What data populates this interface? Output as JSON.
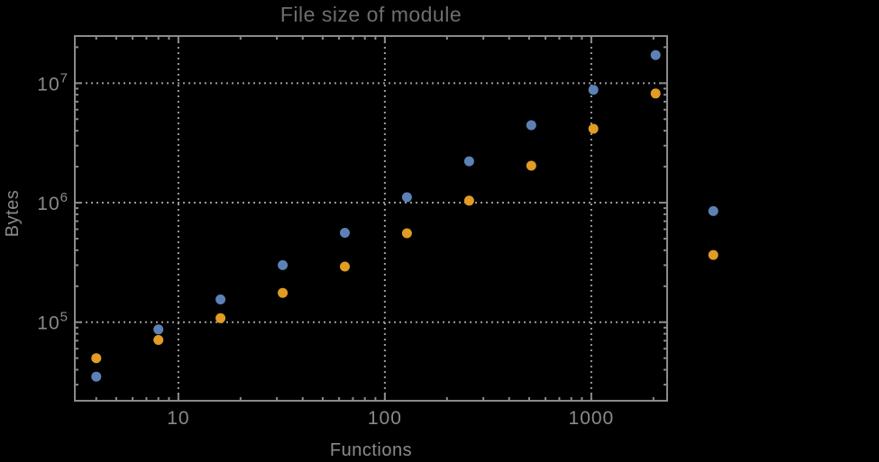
{
  "title": "File size of module",
  "colors": {
    "background": "#000000",
    "frame": "#8a8a8a",
    "grid": "#9a9a9a",
    "tick_text": "#8a8a8a",
    "title_text": "#6e6e6e",
    "series1": "#5e81b5",
    "series2": "#e19c24"
  },
  "chart_data": {
    "type": "scatter",
    "title": "File size of module",
    "xlabel": "Functions",
    "ylabel": "Bytes",
    "x_scale": "log",
    "y_scale": "log",
    "xlim": [
      3.15,
      2330
    ],
    "ylim": [
      22000,
      24800000
    ],
    "grid": {
      "style": "dotted",
      "lines": "major-decades"
    },
    "legend": "none",
    "x_ticks": [
      {
        "value": 10,
        "label": "10"
      },
      {
        "value": 100,
        "label": "100"
      },
      {
        "value": 1000,
        "label": "1000"
      }
    ],
    "y_ticks": [
      {
        "value": 100000,
        "mantissa": "10",
        "exponent": "5"
      },
      {
        "value": 1000000,
        "mantissa": "10",
        "exponent": "6"
      },
      {
        "value": 10000000,
        "mantissa": "10",
        "exponent": "7"
      }
    ],
    "series": [
      {
        "name": "series-1-blue",
        "color": "#5e81b5",
        "marker": "circle",
        "points": [
          [
            4,
            35000
          ],
          [
            8,
            87000
          ],
          [
            16,
            155000
          ],
          [
            32,
            300000
          ],
          [
            64,
            560000
          ],
          [
            128,
            1110000
          ],
          [
            256,
            2220000
          ],
          [
            512,
            4450000
          ],
          [
            1024,
            8800000
          ],
          [
            2048,
            17200000
          ],
          [
            3900,
            850000
          ]
        ]
      },
      {
        "name": "series-2-orange",
        "color": "#e19c24",
        "marker": "circle",
        "points": [
          [
            4,
            50000
          ],
          [
            8,
            71000
          ],
          [
            16,
            108000
          ],
          [
            32,
            176000
          ],
          [
            64,
            292000
          ],
          [
            128,
            555000
          ],
          [
            256,
            1040000
          ],
          [
            512,
            2040000
          ],
          [
            1024,
            4150000
          ],
          [
            2048,
            8200000
          ],
          [
            3900,
            365000
          ]
        ]
      }
    ]
  }
}
